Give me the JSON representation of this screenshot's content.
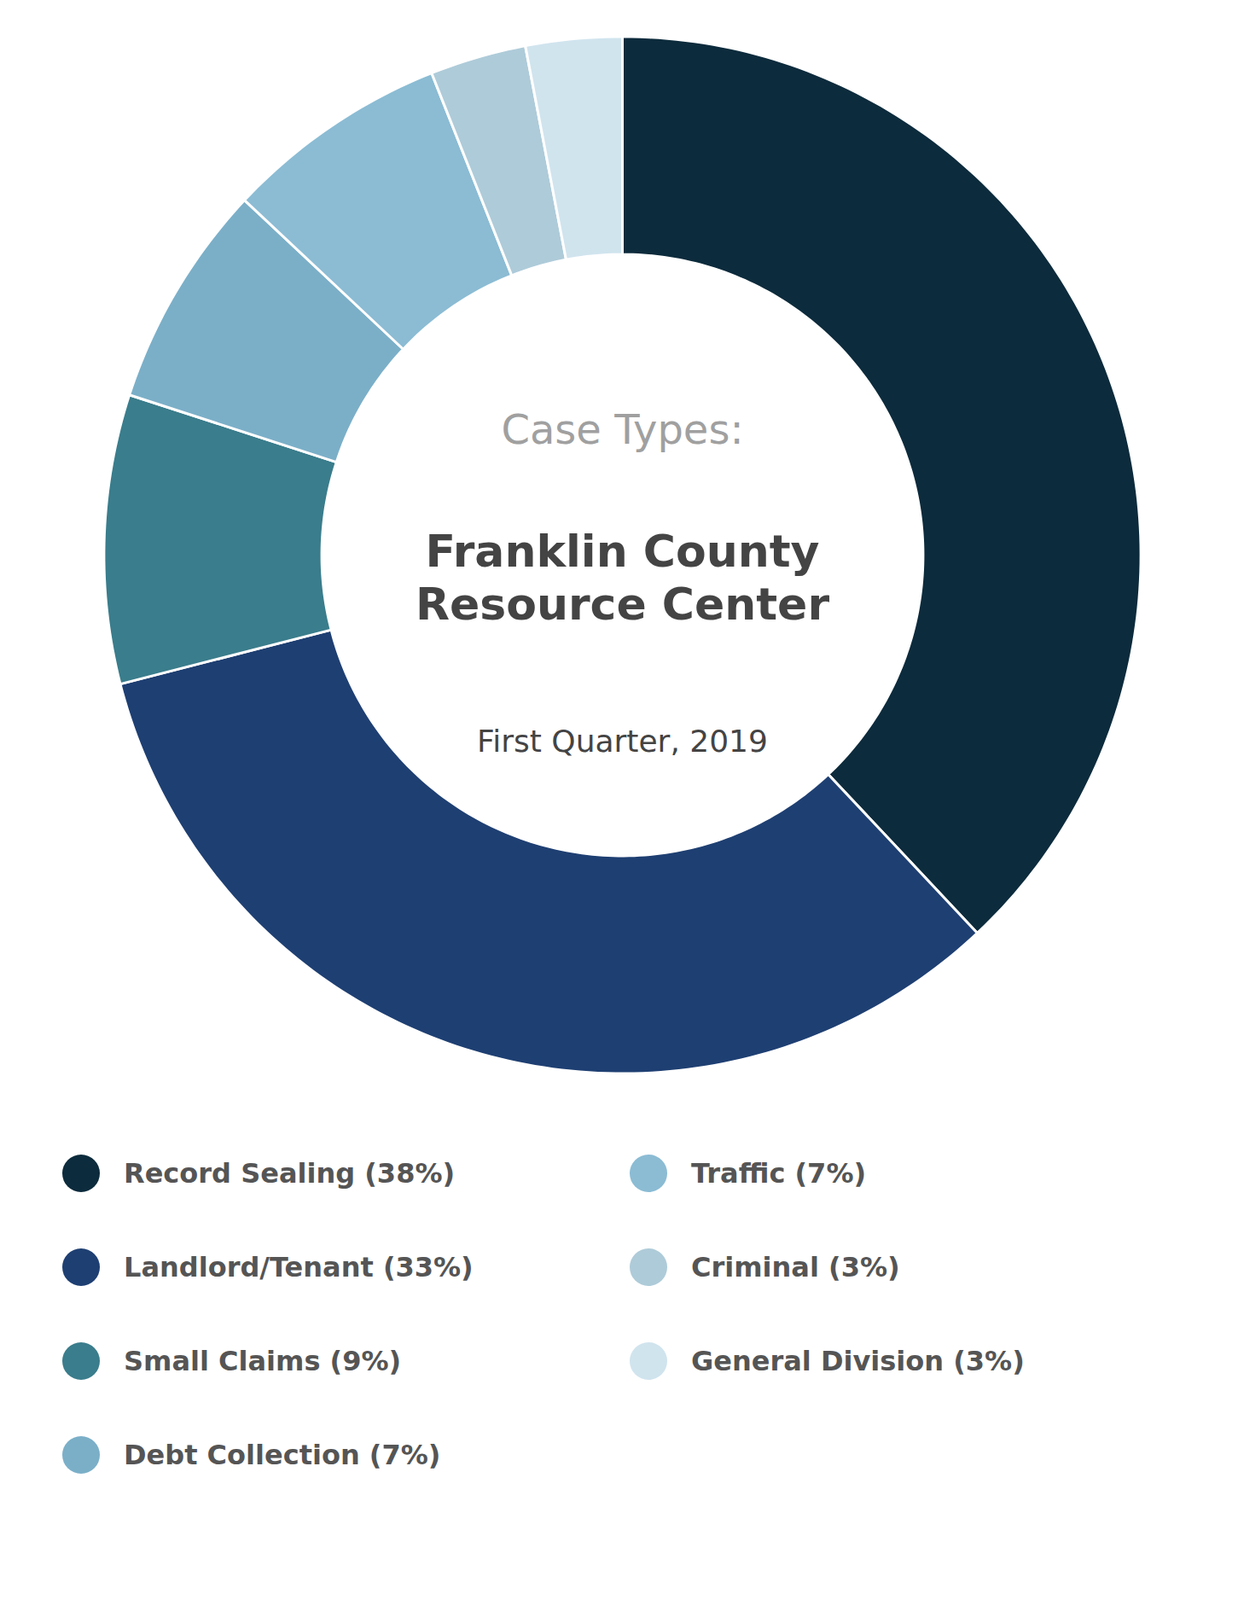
{
  "chart_data": {
    "type": "donut",
    "title": "Case Types:",
    "annotations": [
      "Franklin County\nResource Center"
    ],
    "subtitle": "First Quarter, 2019",
    "categories": [
      "Record Sealing (38%)",
      "Landlord/Tenant (33%)",
      "Small Claims (9%)",
      "Debt Collection (7%)",
      "Traffic (7%)",
      "Criminal (3%)",
      "General Division (3%)"
    ],
    "values": [
      38,
      33,
      9,
      7,
      7,
      3,
      3
    ],
    "colors": [
      "#0c2b3c",
      "#1e3f72",
      "#3a7d8c",
      "#7bafc8",
      "#8bbcd4",
      "#aecbd9",
      "#d0e4ee"
    ],
    "legend": "bottom"
  }
}
